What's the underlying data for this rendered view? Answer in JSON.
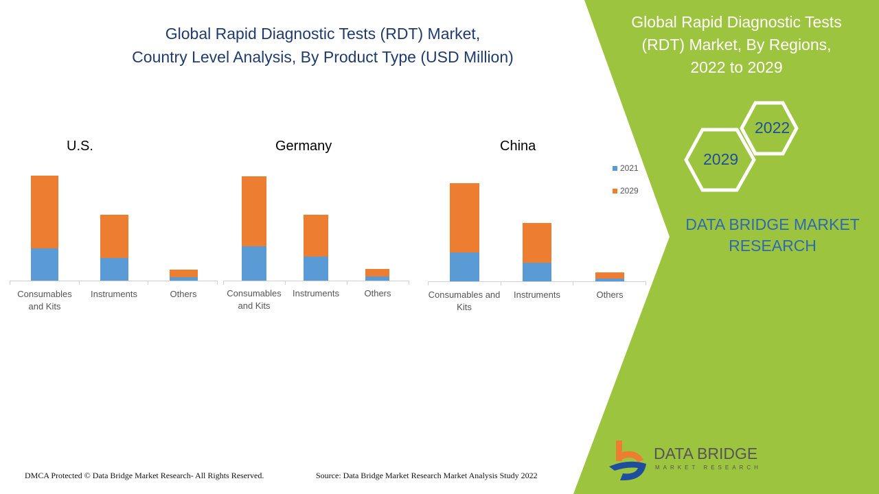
{
  "title": "Global Rapid Diagnostic Tests (RDT) Market, Country Level Analysis, By Product Type (USD Million)",
  "title_lines": [
    "Global Rapid Diagnostic Tests (RDT) Market,",
    "Country Level Analysis, By Product Type (USD Million)"
  ],
  "side_title_lines": [
    "Global Rapid Diagnostic Tests",
    "(RDT) Market, By Regions,",
    "2022 to 2029"
  ],
  "hex_labels": [
    "2022",
    "2029"
  ],
  "brand_lines": [
    "DATA BRIDGE MARKET",
    "RESEARCH"
  ],
  "logo": {
    "name": "DATA BRIDGE",
    "sub": "MARKET RESEARCH"
  },
  "footer": {
    "left": "DMCA Protected © Data Bridge Market Research- All Rights Reserved.",
    "right": "Source: Data Bridge Market Research Market Analysis Study 2022"
  },
  "colors": {
    "2021": "#5b9bd5",
    "2029": "#ed7d31",
    "green": "#9dc43f"
  },
  "legend": [
    "2021",
    "2029"
  ],
  "chart_data": [
    {
      "type": "bar",
      "stacked": true,
      "title": "U.S.",
      "categories": [
        "Consumables and Kits",
        "Instruments",
        "Others"
      ],
      "series": [
        {
          "name": "2021",
          "values": [
            47,
            33,
            5
          ]
        },
        {
          "name": "2029",
          "values": [
            106,
            63,
            11
          ]
        }
      ],
      "ylim": [
        0,
        160
      ],
      "grid": false
    },
    {
      "type": "bar",
      "stacked": true,
      "title": "Germany",
      "categories": [
        "Consumables and Kits",
        "Instruments",
        "Others"
      ],
      "series": [
        {
          "name": "2021",
          "values": [
            50,
            35,
            6
          ]
        },
        {
          "name": "2029",
          "values": [
            102,
            61,
            11
          ]
        }
      ],
      "ylim": [
        0,
        160
      ],
      "grid": false
    },
    {
      "type": "bar",
      "stacked": true,
      "title": "China",
      "categories": [
        "Consumables and Kits",
        "Instruments",
        "Others"
      ],
      "series": [
        {
          "name": "2021",
          "values": [
            42,
            27,
            4
          ]
        },
        {
          "name": "2029",
          "values": [
            101,
            58,
            9
          ]
        }
      ],
      "ylim": [
        0,
        160
      ],
      "grid": false,
      "legend": "right"
    }
  ]
}
